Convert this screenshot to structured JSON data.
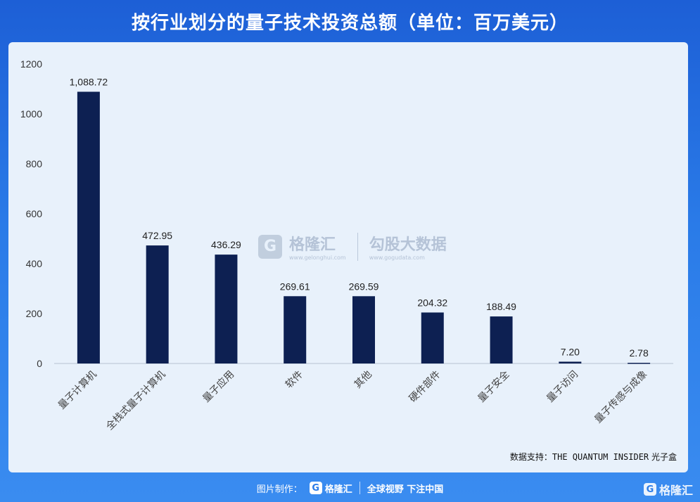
{
  "title": "按行业划分的量子技术投资总额（单位：百万美元）",
  "chart_data": {
    "type": "bar",
    "categories": [
      "量子计算机",
      "全栈式量子计算机",
      "量子应用",
      "软件",
      "其他",
      "硬件部件",
      "量子安全",
      "量子访问",
      "量子传感与成像"
    ],
    "values": [
      1088.72,
      472.95,
      436.29,
      269.61,
      269.59,
      204.32,
      188.49,
      7.2,
      2.78
    ],
    "value_labels": [
      "1,088.72",
      "472.95",
      "436.29",
      "269.61",
      "269.59",
      "204.32",
      "188.49",
      "7.20",
      "2.78"
    ],
    "yticks": [
      "0",
      "200",
      "400",
      "600",
      "800",
      "1000",
      "1200"
    ],
    "ylim": [
      0,
      1200
    ],
    "grid": false,
    "bar_color": "#0d2052"
  },
  "source_prefix": "数据支持：",
  "source_en": "THE QUANTUM INSIDER",
  "source_suffix": " 光子盒",
  "watermark": {
    "logo_letter": "G",
    "brand": "格隆汇",
    "brand_url": "www.gelonghui.com",
    "partner": "勾股大数据",
    "partner_url": "www.gogudata.com"
  },
  "footer": {
    "made_by": "图片制作：",
    "brand": "格隆汇",
    "slogan": "全球视野 下注中国"
  },
  "corner_brand": "格隆汇"
}
